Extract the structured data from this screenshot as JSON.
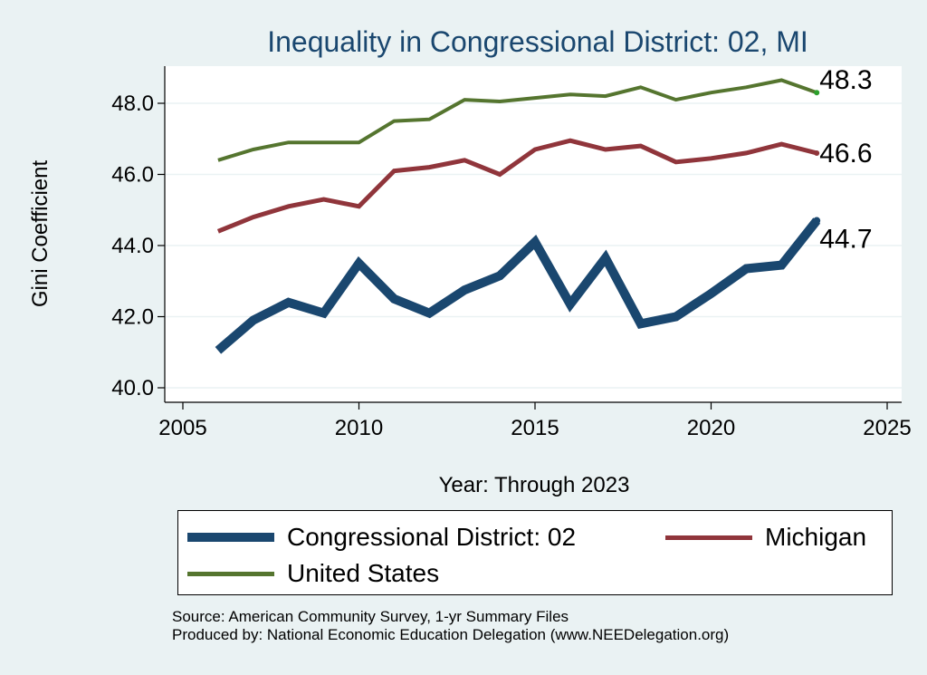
{
  "chart_data": {
    "type": "line",
    "title": "Inequality in Congressional District:  02, MI",
    "xlabel": "Year: Through 2023",
    "ylabel": "Gini Coefficient",
    "xlim": [
      2005,
      2025
    ],
    "ylim": [
      40.0,
      49.0
    ],
    "x_ticks": [
      "2005",
      "2010",
      "2015",
      "2020",
      "2025"
    ],
    "y_ticks": [
      "40.0",
      "42.0",
      "44.0",
      "46.0",
      "48.0"
    ],
    "grid": true,
    "legend_position": "bottom",
    "x": [
      2006,
      2007,
      2008,
      2009,
      2010,
      2011,
      2012,
      2013,
      2014,
      2015,
      2016,
      2017,
      2018,
      2019,
      2020,
      2021,
      2022,
      2023
    ],
    "series": [
      {
        "name": "Congressional District:  02",
        "color": "#1a476f",
        "values": [
          41.05,
          41.9,
          42.4,
          42.1,
          43.5,
          42.5,
          42.1,
          42.75,
          43.15,
          44.1,
          42.35,
          43.65,
          41.8,
          42.0,
          42.65,
          43.35,
          43.45,
          44.7
        ],
        "end_label": "44.7"
      },
      {
        "name": "Michigan",
        "color": "#90353b",
        "values": [
          44.4,
          44.8,
          45.1,
          45.3,
          45.1,
          46.1,
          46.2,
          46.4,
          46.0,
          46.7,
          46.95,
          46.7,
          46.8,
          46.35,
          46.45,
          46.6,
          46.85,
          46.6
        ],
        "end_label": "46.6"
      },
      {
        "name": "United States",
        "color": "#55752f",
        "values": [
          46.4,
          46.7,
          46.9,
          46.9,
          46.9,
          47.5,
          47.55,
          48.1,
          48.05,
          48.15,
          48.25,
          48.2,
          48.45,
          48.1,
          48.3,
          48.45,
          48.65,
          48.3
        ],
        "end_label": "48.3"
      }
    ]
  },
  "legend": {
    "items": [
      {
        "label": "Congressional District:  02",
        "color": "#1a476f"
      },
      {
        "label": "Michigan",
        "color": "#90353b"
      },
      {
        "label": "United States",
        "color": "#55752f"
      }
    ]
  },
  "notes": {
    "source": "Source: American Community Survey, 1-yr Summary Files",
    "produced": "Produced by: National Economic Education Delegation (www.NEEDelegation.org)"
  }
}
